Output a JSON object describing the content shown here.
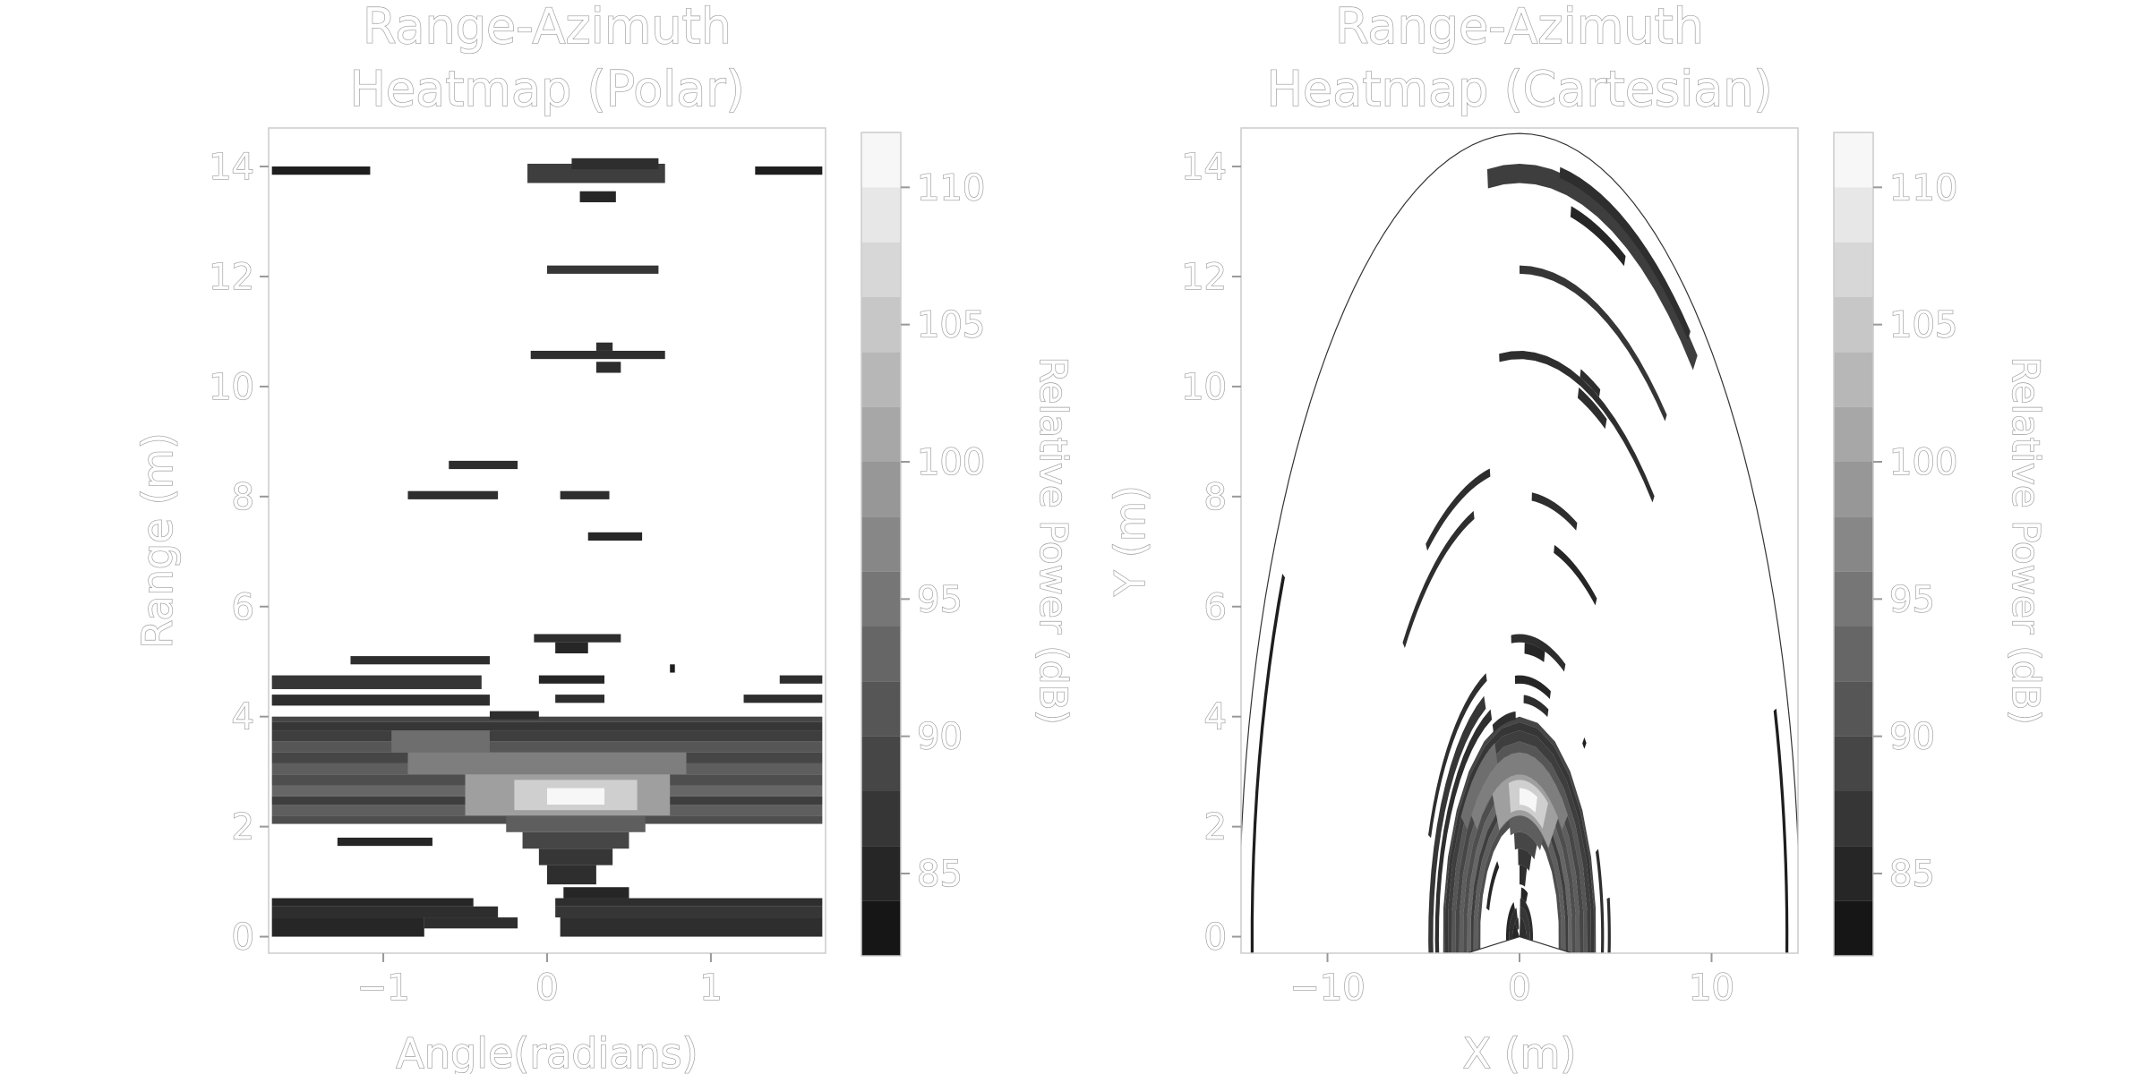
{
  "chart_data": [
    {
      "type": "heatmap",
      "title_line1": "Range-Azimuth",
      "title_line2": "Heatmap (Polar)",
      "xlabel": "Angle(radians)",
      "ylabel": "Range (m)",
      "xlim": [
        -1.7,
        1.7
      ],
      "ylim": [
        -0.3,
        14.7
      ],
      "x_ticks": [
        {
          "value": -1,
          "label": "−1"
        },
        {
          "value": 0,
          "label": "0"
        },
        {
          "value": 1,
          "label": "1"
        }
      ],
      "y_ticks": [
        {
          "value": 0,
          "label": "0"
        },
        {
          "value": 2,
          "label": "2"
        },
        {
          "value": 4,
          "label": "4"
        },
        {
          "value": 6,
          "label": "6"
        },
        {
          "value": 8,
          "label": "8"
        },
        {
          "value": 10,
          "label": "10"
        },
        {
          "value": 12,
          "label": "12"
        },
        {
          "value": 14,
          "label": "14"
        }
      ],
      "colorbar": {
        "label": "Relative Power (dB)",
        "range": [
          82,
          112
        ],
        "levels": [
          82,
          84,
          86,
          88,
          90,
          92,
          94,
          96,
          98,
          100,
          102,
          104,
          106,
          108,
          110,
          112
        ],
        "ticks": [
          {
            "value": 85,
            "label": "85"
          },
          {
            "value": 90,
            "label": "90"
          },
          {
            "value": 95,
            "label": "95"
          },
          {
            "value": 100,
            "label": "100"
          },
          {
            "value": 105,
            "label": "105"
          },
          {
            "value": 110,
            "label": "110"
          }
        ]
      },
      "cells": [
        {
          "a0": -1.68,
          "a1": -1.08,
          "r0": 13.85,
          "r1": 14.0,
          "v": 84
        },
        {
          "a0": 1.27,
          "a1": 1.68,
          "r0": 13.85,
          "r1": 14.0,
          "v": 84
        },
        {
          "a0": -0.12,
          "a1": 0.72,
          "r0": 13.7,
          "r1": 14.05,
          "v": 88
        },
        {
          "a0": 0.15,
          "a1": 0.68,
          "r0": 13.95,
          "r1": 14.15,
          "v": 86
        },
        {
          "a0": 0.2,
          "a1": 0.42,
          "r0": 13.35,
          "r1": 13.55,
          "v": 85
        },
        {
          "a0": 0.0,
          "a1": 0.68,
          "r0": 12.05,
          "r1": 12.2,
          "v": 87
        },
        {
          "a0": -0.1,
          "a1": 0.72,
          "r0": 10.5,
          "r1": 10.65,
          "v": 86
        },
        {
          "a0": 0.3,
          "a1": 0.4,
          "r0": 10.65,
          "r1": 10.8,
          "v": 86
        },
        {
          "a0": 0.3,
          "a1": 0.45,
          "r0": 10.25,
          "r1": 10.45,
          "v": 86
        },
        {
          "a0": -0.6,
          "a1": -0.18,
          "r0": 8.5,
          "r1": 8.65,
          "v": 86
        },
        {
          "a0": -0.85,
          "a1": -0.3,
          "r0": 7.95,
          "r1": 8.1,
          "v": 86
        },
        {
          "a0": 0.08,
          "a1": 0.38,
          "r0": 7.95,
          "r1": 8.1,
          "v": 86
        },
        {
          "a0": 0.25,
          "a1": 0.58,
          "r0": 7.2,
          "r1": 7.35,
          "v": 85
        },
        {
          "a0": -0.08,
          "a1": 0.45,
          "r0": 5.35,
          "r1": 5.5,
          "v": 86
        },
        {
          "a0": 0.05,
          "a1": 0.25,
          "r0": 5.15,
          "r1": 5.35,
          "v": 85
        },
        {
          "a0": -1.68,
          "a1": 1.68,
          "r0": 3.9,
          "r1": 4.0,
          "v": 89
        },
        {
          "a0": -1.68,
          "a1": 1.68,
          "r0": 3.75,
          "r1": 3.9,
          "v": 87
        },
        {
          "a0": -1.68,
          "a1": 1.68,
          "r0": 3.55,
          "r1": 3.75,
          "v": 88
        },
        {
          "a0": -1.68,
          "a1": 1.68,
          "r0": 3.35,
          "r1": 3.55,
          "v": 91
        },
        {
          "a0": -1.68,
          "a1": 1.68,
          "r0": 3.15,
          "r1": 3.35,
          "v": 89
        },
        {
          "a0": -1.68,
          "a1": 1.68,
          "r0": 2.95,
          "r1": 3.15,
          "v": 92
        },
        {
          "a0": -1.68,
          "a1": 1.68,
          "r0": 2.75,
          "r1": 2.95,
          "v": 90
        },
        {
          "a0": -1.68,
          "a1": 1.68,
          "r0": 2.55,
          "r1": 2.75,
          "v": 93
        },
        {
          "a0": -1.68,
          "a1": 1.68,
          "r0": 2.4,
          "r1": 2.55,
          "v": 88
        },
        {
          "a0": -1.68,
          "a1": 1.68,
          "r0": 2.2,
          "r1": 2.4,
          "v": 92
        },
        {
          "a0": -1.68,
          "a1": 1.68,
          "r0": 2.05,
          "r1": 2.2,
          "v": 90
        },
        {
          "a0": -0.85,
          "a1": 0.85,
          "r0": 2.95,
          "r1": 3.35,
          "v": 96
        },
        {
          "a0": -0.5,
          "a1": 0.75,
          "r0": 2.2,
          "r1": 2.95,
          "v": 100
        },
        {
          "a0": -0.2,
          "a1": 0.55,
          "r0": 2.3,
          "r1": 2.85,
          "v": 106
        },
        {
          "a0": 0.0,
          "a1": 0.35,
          "r0": 2.4,
          "r1": 2.7,
          "v": 111
        },
        {
          "a0": -0.95,
          "a1": -0.35,
          "r0": 3.35,
          "r1": 3.75,
          "v": 94
        },
        {
          "a0": -0.25,
          "a1": 0.6,
          "r0": 1.9,
          "r1": 2.2,
          "v": 92
        },
        {
          "a0": -0.15,
          "a1": 0.5,
          "r0": 1.6,
          "r1": 1.9,
          "v": 89
        },
        {
          "a0": -0.05,
          "a1": 0.4,
          "r0": 1.3,
          "r1": 1.6,
          "v": 87
        },
        {
          "a0": 0.0,
          "a1": 0.3,
          "r0": 0.95,
          "r1": 1.3,
          "v": 86
        },
        {
          "a0": -1.28,
          "a1": -0.7,
          "r0": 1.65,
          "r1": 1.8,
          "v": 85
        },
        {
          "a0": -0.35,
          "a1": -0.05,
          "r0": 3.95,
          "r1": 4.1,
          "v": 86
        },
        {
          "a0": -1.68,
          "a1": -0.35,
          "r0": 4.2,
          "r1": 4.4,
          "v": 86
        },
        {
          "a0": -1.68,
          "a1": -0.4,
          "r0": 4.5,
          "r1": 4.75,
          "v": 87
        },
        {
          "a0": -1.2,
          "a1": -0.35,
          "r0": 4.95,
          "r1": 5.1,
          "v": 86
        },
        {
          "a0": -0.05,
          "a1": 0.35,
          "r0": 4.6,
          "r1": 4.75,
          "v": 85
        },
        {
          "a0": 0.05,
          "a1": 0.35,
          "r0": 4.25,
          "r1": 4.4,
          "v": 86
        },
        {
          "a0": 0.75,
          "a1": 0.78,
          "r0": 4.8,
          "r1": 4.95,
          "v": 84
        },
        {
          "a0": 1.2,
          "a1": 1.68,
          "r0": 4.25,
          "r1": 4.4,
          "v": 86
        },
        {
          "a0": 1.42,
          "a1": 1.68,
          "r0": 4.6,
          "r1": 4.75,
          "v": 86
        },
        {
          "a0": -1.68,
          "a1": -0.45,
          "r0": 0.55,
          "r1": 0.7,
          "v": 85
        },
        {
          "a0": -1.68,
          "a1": -0.3,
          "r0": 0.35,
          "r1": 0.55,
          "v": 86
        },
        {
          "a0": -1.68,
          "a1": -0.75,
          "r0": 0.0,
          "r1": 0.35,
          "v": 85
        },
        {
          "a0": -0.75,
          "a1": -0.18,
          "r0": 0.15,
          "r1": 0.35,
          "v": 86
        },
        {
          "a0": 0.05,
          "a1": 1.68,
          "r0": 0.55,
          "r1": 0.7,
          "v": 86
        },
        {
          "a0": 0.05,
          "a1": 1.68,
          "r0": 0.35,
          "r1": 0.55,
          "v": 87
        },
        {
          "a0": 0.08,
          "a1": 1.68,
          "r0": 0.0,
          "r1": 0.35,
          "v": 86
        },
        {
          "a0": 0.1,
          "a1": 0.5,
          "r0": 0.7,
          "r1": 0.9,
          "v": 85
        }
      ]
    },
    {
      "type": "heatmap",
      "title_line1": "Range-Azimuth",
      "title_line2": "Heatmap (Cartesian)",
      "xlabel": "X (m)",
      "ylabel": "Y (m)",
      "xlim": [
        -14.5,
        14.5
      ],
      "ylim": [
        -0.3,
        14.7
      ],
      "x_ticks": [
        {
          "value": -10,
          "label": "−10"
        },
        {
          "value": 0,
          "label": "0"
        },
        {
          "value": 10,
          "label": "10"
        }
      ],
      "y_ticks": [
        {
          "value": 0,
          "label": "0"
        },
        {
          "value": 2,
          "label": "2"
        },
        {
          "value": 4,
          "label": "4"
        },
        {
          "value": 6,
          "label": "6"
        },
        {
          "value": 8,
          "label": "8"
        },
        {
          "value": 10,
          "label": "10"
        },
        {
          "value": 12,
          "label": "12"
        },
        {
          "value": 14,
          "label": "14"
        }
      ],
      "colorbar": {
        "label": "Relative Power (dB)",
        "range": [
          82,
          112
        ],
        "levels": [
          82,
          84,
          86,
          88,
          90,
          92,
          94,
          96,
          98,
          100,
          102,
          104,
          106,
          108,
          110,
          112
        ],
        "ticks": [
          {
            "value": 85,
            "label": "85"
          },
          {
            "value": 90,
            "label": "90"
          },
          {
            "value": 95,
            "label": "95"
          },
          {
            "value": 100,
            "label": "100"
          },
          {
            "value": 105,
            "label": "105"
          },
          {
            "value": 110,
            "label": "110"
          }
        ]
      },
      "boundary_range": 14.6,
      "boundary_max_angle": 1.68
    }
  ]
}
